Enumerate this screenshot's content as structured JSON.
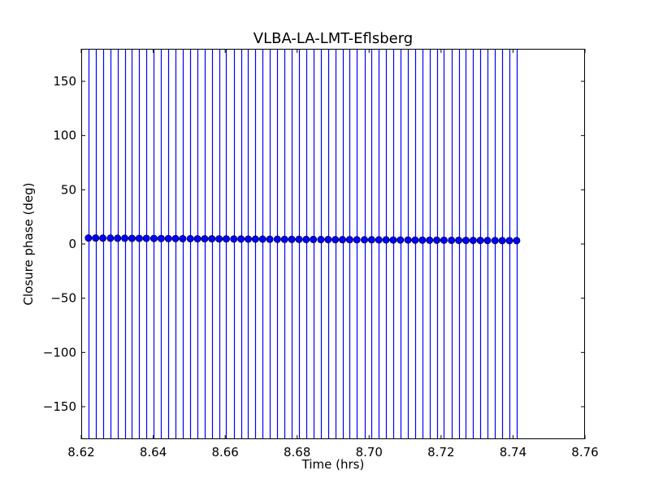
{
  "chart_data": {
    "type": "scatter",
    "title": "VLBA-LA-LMT-Eflsberg",
    "xlabel": "Time (hrs)",
    "ylabel": "Closure phase (deg)",
    "xlim": [
      8.62,
      8.76
    ],
    "ylim": [
      -180,
      180
    ],
    "xticks": [
      8.62,
      8.64,
      8.66,
      8.68,
      8.7,
      8.72,
      8.74,
      8.76
    ],
    "xtick_labels": [
      "8.62",
      "8.64",
      "8.66",
      "8.68",
      "8.70",
      "8.72",
      "8.74",
      "8.76"
    ],
    "yticks": [
      -150,
      -100,
      -50,
      0,
      50,
      100,
      150
    ],
    "ytick_labels": [
      "−150",
      "−100",
      "−50",
      "0",
      "50",
      "100",
      "150"
    ],
    "grid": false,
    "marker_color": "#0000ff",
    "errorbar_color": "#0000ff",
    "series": [
      {
        "x": [
          8.622,
          8.624,
          8.626,
          8.6281,
          8.6301,
          8.6321,
          8.6341,
          8.6361,
          8.6381,
          8.6402,
          8.6422,
          8.6442,
          8.6462,
          8.6482,
          8.6503,
          8.6523,
          8.6543,
          8.6563,
          8.6583,
          8.6603,
          8.6624,
          8.6644,
          8.6664,
          8.6684,
          8.6704,
          8.6724,
          8.6745,
          8.6765,
          8.6785,
          8.6805,
          8.6825,
          8.6845,
          8.6866,
          8.6886,
          8.6906,
          8.6926,
          8.6946,
          8.6966,
          8.6987,
          8.7007,
          8.7027,
          8.7047,
          8.7067,
          8.7087,
          8.7108,
          8.7128,
          8.7148,
          8.7168,
          8.7188,
          8.7208,
          8.7229,
          8.7249,
          8.7269,
          8.7289,
          8.7309,
          8.7329,
          8.735,
          8.737,
          8.739,
          8.741
        ],
        "y": [
          5.5,
          5.5,
          5.4,
          5.4,
          5.3,
          5.3,
          5.2,
          5.2,
          5.2,
          5.1,
          5.1,
          5.0,
          5.0,
          4.9,
          4.9,
          4.8,
          4.8,
          4.8,
          4.7,
          4.7,
          4.6,
          4.6,
          4.5,
          4.5,
          4.5,
          4.4,
          4.4,
          4.3,
          4.3,
          4.3,
          4.2,
          4.2,
          4.1,
          4.1,
          4.0,
          4.0,
          4.0,
          3.9,
          3.9,
          3.9,
          3.8,
          3.8,
          3.7,
          3.7,
          3.7,
          3.6,
          3.6,
          3.5,
          3.5,
          3.5,
          3.4,
          3.4,
          3.3,
          3.3,
          3.3,
          3.2,
          3.2,
          3.1,
          3.1,
          3.1
        ],
        "yerr_extends_beyond_ylim": true
      }
    ]
  }
}
